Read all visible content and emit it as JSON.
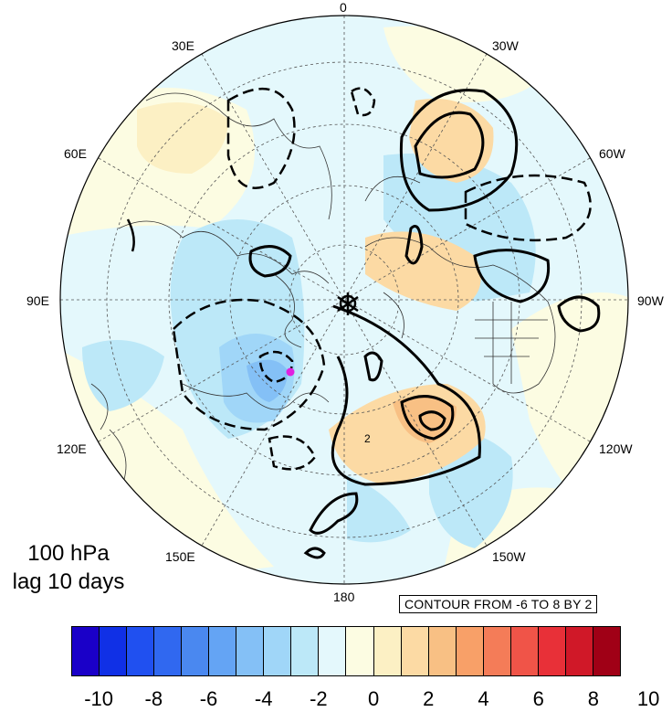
{
  "map": {
    "projection": "north-polar-stereographic",
    "longitude_labels": [
      "0",
      "30W",
      "60W",
      "90W",
      "120W",
      "150W",
      "180",
      "150E",
      "120E",
      "90E",
      "60E",
      "30E"
    ],
    "level": "100 hPa",
    "lag": "lag 10 days",
    "contour_note": "CONTOUR FROM -6 TO 8 BY 2",
    "contour_value_label": "2",
    "marker_color": "#e020e0"
  },
  "colorbar": {
    "colors": [
      "#1a00c8",
      "#1030e6",
      "#2050f0",
      "#3068f0",
      "#4a88f0",
      "#64a4f4",
      "#84c0f6",
      "#a0d6f8",
      "#bce8f8",
      "#e4f8fc",
      "#fcfce2",
      "#fcf0c4",
      "#fcdaa4",
      "#f8c084",
      "#f8a068",
      "#f47c58",
      "#f05448",
      "#e83038",
      "#d01828",
      "#a00016"
    ],
    "tick_labels": [
      "-10",
      "-8",
      "-6",
      "-4",
      "-2",
      "0",
      "2",
      "4",
      "6",
      "8",
      "10"
    ]
  }
}
